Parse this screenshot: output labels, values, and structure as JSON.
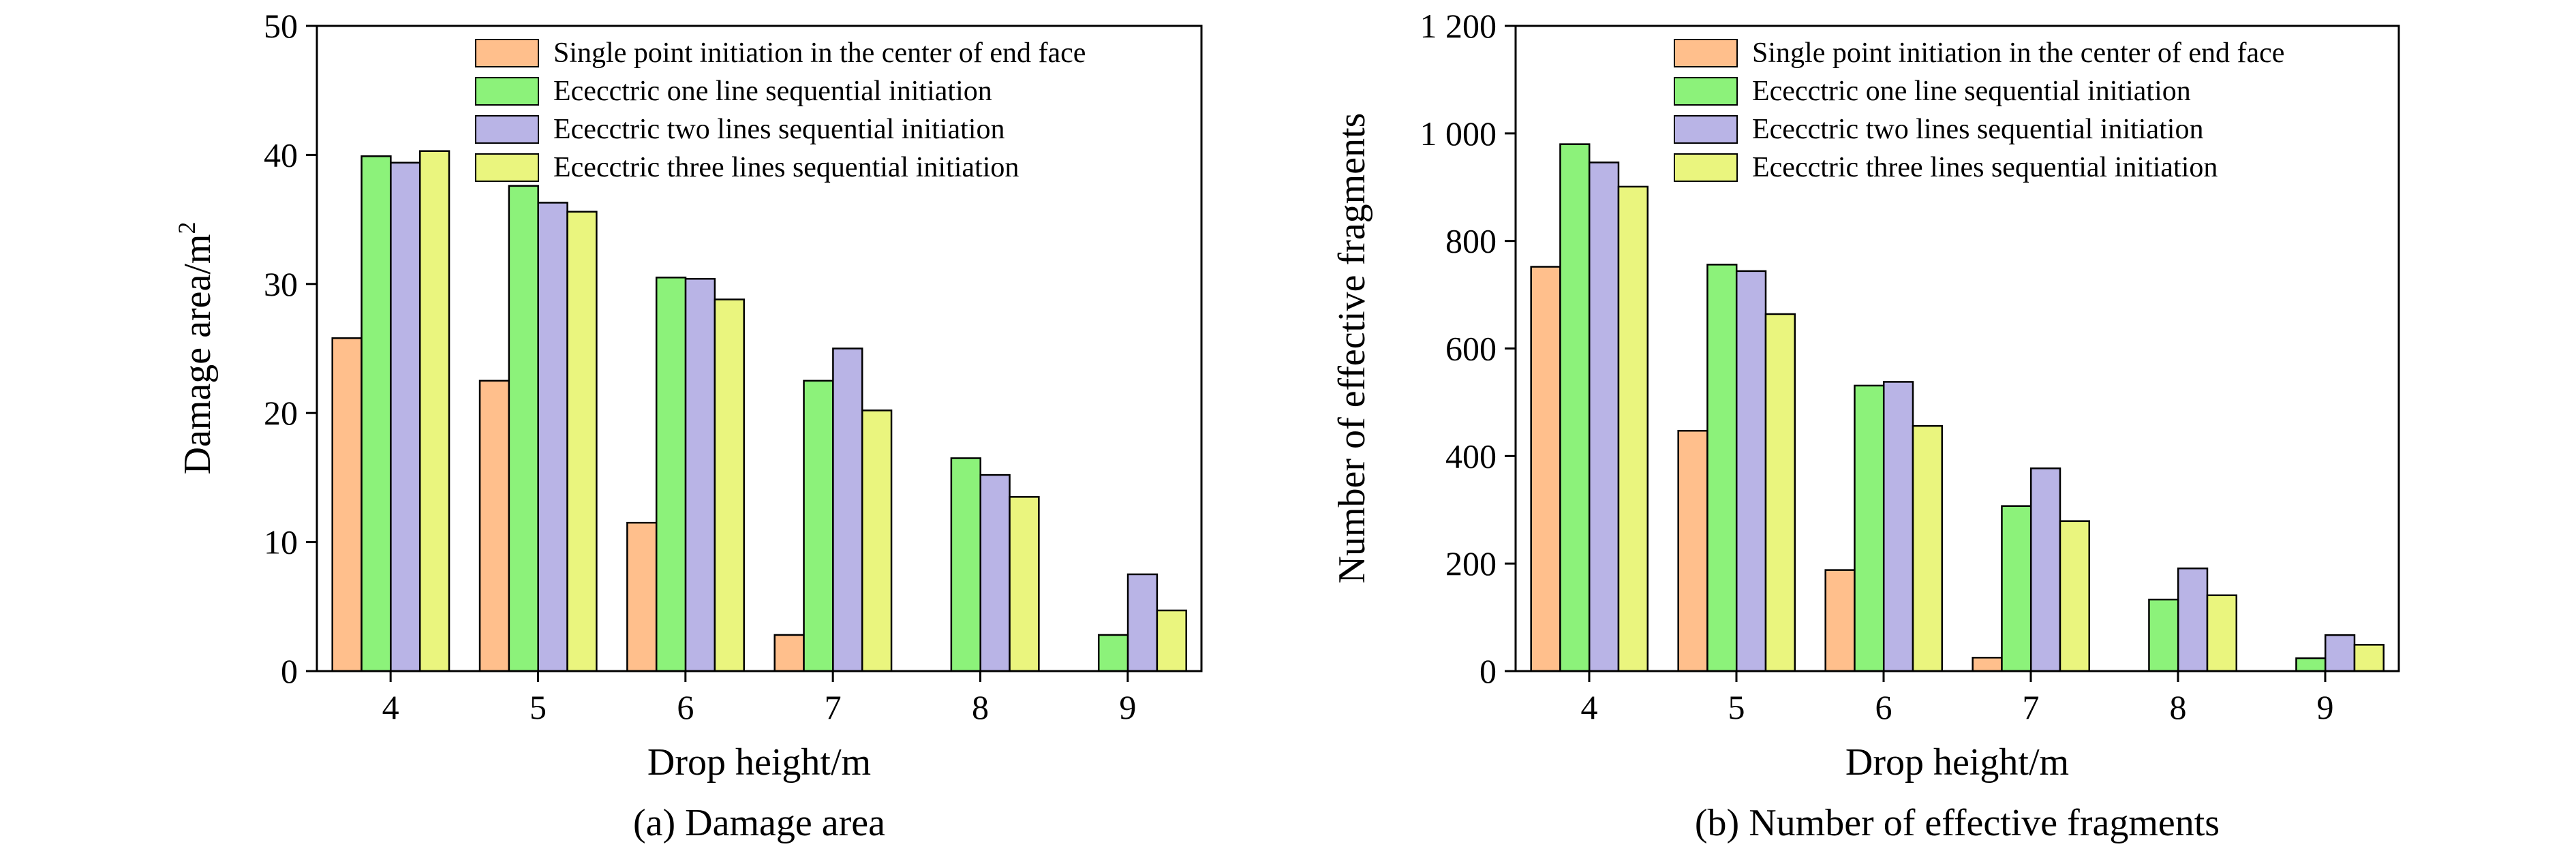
{
  "chart_data": [
    {
      "type": "bar",
      "title": "(a) Damage area",
      "xlabel": "Drop height/m",
      "ylabel": "Damage area/m",
      "ylabel_sup": "2",
      "ylim": [
        0,
        50
      ],
      "yticks": [
        0,
        10,
        20,
        30,
        40,
        50
      ],
      "ytick_labels": [
        "0",
        "10",
        "20",
        "30",
        "40",
        "50"
      ],
      "categories": [
        "4",
        "5",
        "6",
        "7",
        "8",
        "9"
      ],
      "legend_position": "top-right",
      "series": [
        {
          "name": "Single point initiation in the center of end face",
          "color": "#ffbf8c",
          "values": [
            25.8,
            22.5,
            11.5,
            2.8,
            0,
            0
          ]
        },
        {
          "name": "Ececctric one line sequential initiation",
          "color": "#8cf27a",
          "values": [
            39.9,
            37.6,
            30.5,
            22.5,
            16.5,
            2.8
          ]
        },
        {
          "name": "Ececctric two lines sequential initiation",
          "color": "#b9b4e6",
          "values": [
            39.4,
            36.3,
            30.4,
            25.0,
            15.2,
            7.5
          ]
        },
        {
          "name": "Ececctric three lines sequential initiation",
          "color": "#eaf57e",
          "values": [
            40.3,
            35.6,
            28.8,
            20.2,
            13.5,
            4.7
          ]
        }
      ]
    },
    {
      "type": "bar",
      "title": "(b) Number of effective fragments",
      "xlabel": "Drop height/m",
      "ylabel": "Number of effective fragments",
      "ylabel_sup": "",
      "ylim": [
        0,
        1200
      ],
      "yticks": [
        0,
        200,
        400,
        600,
        800,
        1000,
        1200
      ],
      "ytick_labels": [
        "0",
        "200",
        "400",
        "600",
        "800",
        "1 000",
        "1 200"
      ],
      "categories": [
        "4",
        "5",
        "6",
        "7",
        "8",
        "9"
      ],
      "legend_position": "top-right",
      "series": [
        {
          "name": "Single point initiation in the center of end face",
          "color": "#ffbf8c",
          "values": [
            752,
            447,
            188,
            25,
            0,
            0
          ]
        },
        {
          "name": "Ececctric one line sequential initiation",
          "color": "#8cf27a",
          "values": [
            980,
            756,
            531,
            307,
            133,
            24
          ]
        },
        {
          "name": "Ececctric two lines sequential initiation",
          "color": "#b9b4e6",
          "values": [
            946,
            744,
            538,
            377,
            191,
            67
          ]
        },
        {
          "name": "Ececctric three lines sequential initiation",
          "color": "#eaf57e",
          "values": [
            901,
            664,
            456,
            279,
            141,
            49
          ]
        }
      ]
    }
  ]
}
